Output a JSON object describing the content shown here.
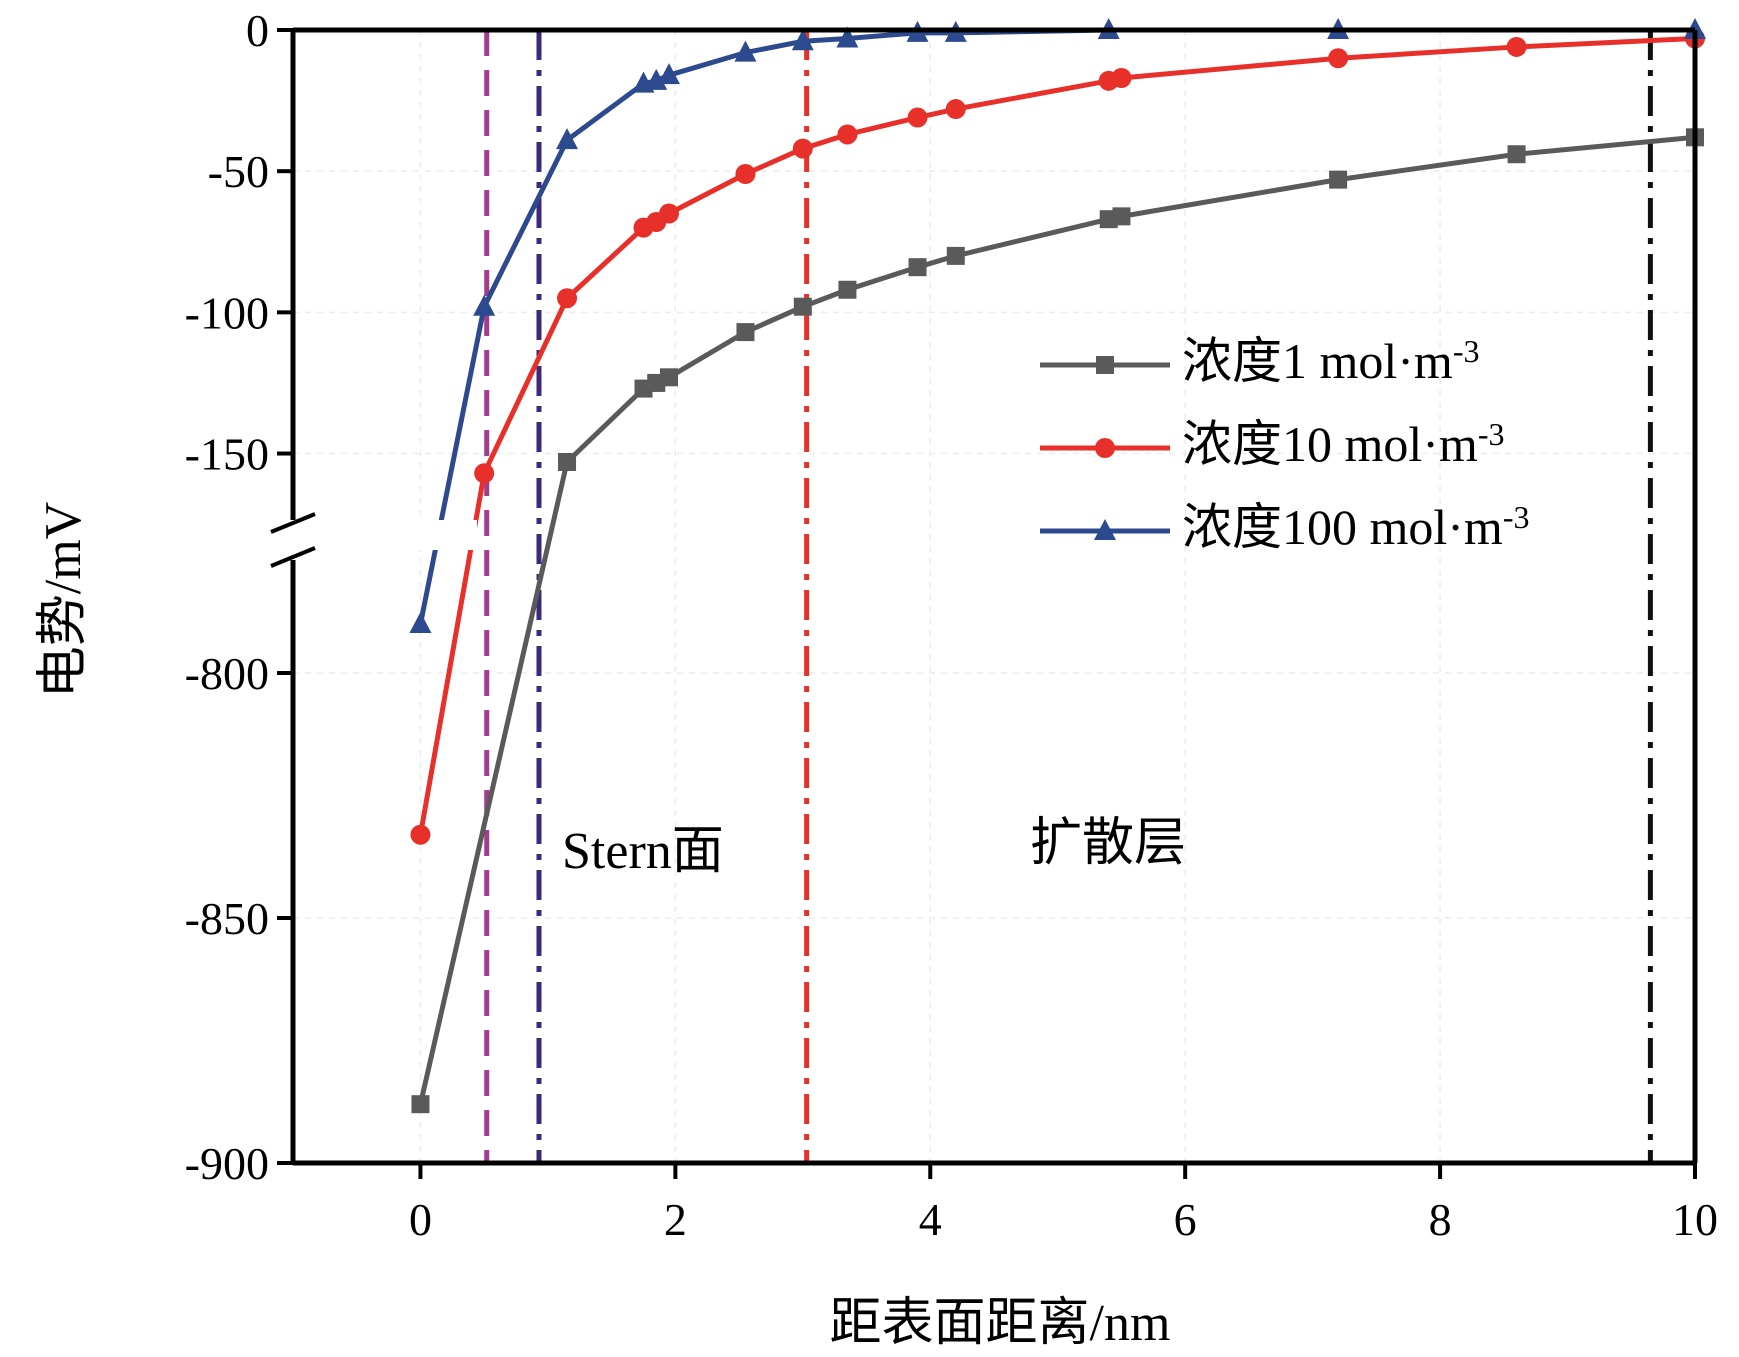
{
  "chart_data": {
    "type": "line",
    "xlabel": "距表面距离/nm",
    "ylabel": "电势/mV",
    "xlim": [
      -1,
      10
    ],
    "ylim_upper": [
      -170,
      0
    ],
    "ylim_lower": [
      -900,
      -780
    ],
    "axis_break": true,
    "x_ticks": [
      "0",
      "2",
      "4",
      "6",
      "8",
      "10"
    ],
    "x_tick_values": [
      0,
      2,
      4,
      6,
      8,
      10
    ],
    "y_ticks_upper": [
      "0",
      "-50",
      "-100",
      "-150"
    ],
    "y_tick_values_upper": [
      0,
      -50,
      -100,
      -150
    ],
    "y_ticks_lower": [
      "-800",
      "-850",
      "-900"
    ],
    "y_tick_values_lower": [
      -800,
      -850,
      -900
    ],
    "grid": true,
    "legend_position": "right",
    "series": [
      {
        "name": "浓度1 mol·m",
        "superscript": "-3",
        "color": "#5a5a5a",
        "marker": "square",
        "x": [
          0,
          1.15,
          1.75,
          1.85,
          1.95,
          2.55,
          3.0,
          3.35,
          3.9,
          4.2,
          5.4,
          5.5,
          7.2,
          8.6,
          10.0
        ],
        "y": [
          -888,
          -153,
          -127,
          -125,
          -123,
          -107,
          -98,
          -92,
          -84,
          -80,
          -67,
          -66,
          -53,
          -44,
          -38
        ]
      },
      {
        "name": "浓度10 mol·m",
        "superscript": "-3",
        "color": "#e8302a",
        "marker": "circle",
        "x": [
          0,
          0.5,
          1.15,
          1.75,
          1.85,
          1.95,
          2.55,
          3.0,
          3.35,
          3.9,
          4.2,
          5.4,
          5.5,
          7.2,
          8.6,
          10.0
        ],
        "y": [
          -833,
          -157,
          -95,
          -70,
          -68,
          -65,
          -51,
          -42,
          -37,
          -31,
          -28,
          -18,
          -17,
          -10,
          -6,
          -3
        ]
      },
      {
        "name": "浓度100 mol·m",
        "superscript": "-3",
        "color": "#2e4a8e",
        "marker": "triangle",
        "x": [
          0,
          0.5,
          1.15,
          1.75,
          1.85,
          1.95,
          2.55,
          3.0,
          3.35,
          3.9,
          4.2,
          5.4,
          7.2,
          10.0
        ],
        "y": [
          -790,
          -98,
          -39,
          -19,
          -18,
          -16,
          -8,
          -4,
          -3,
          -1,
          -1,
          0,
          0,
          0
        ]
      }
    ],
    "vertical_lines": [
      {
        "x": 0.52,
        "color": "#a23c8c",
        "style": "dashed"
      },
      {
        "x": 0.93,
        "color": "#3c2a78",
        "style": "dashdot"
      },
      {
        "x": 3.03,
        "color": "#e8302a",
        "style": "dashdot"
      },
      {
        "x": 9.65,
        "color": "#111111",
        "style": "dashdot"
      }
    ],
    "annotations": [
      {
        "text": "Stern面",
        "x": 1.15,
        "y": -825
      },
      {
        "text": "扩散层",
        "x": 4.8,
        "y": -824
      }
    ]
  }
}
